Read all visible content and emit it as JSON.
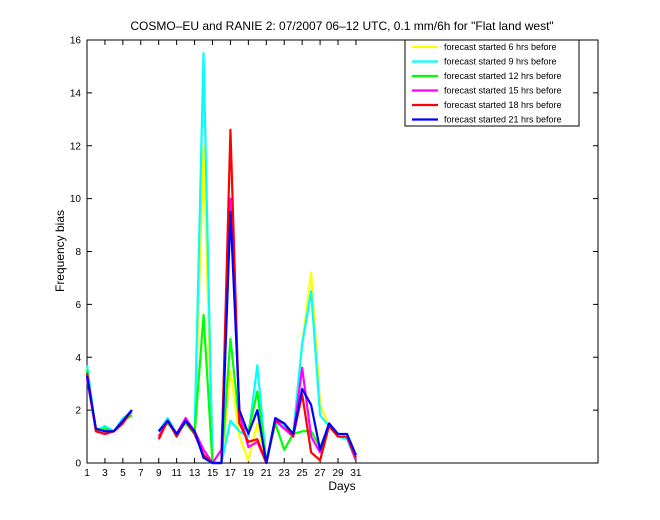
{
  "chart_data": {
    "type": "line",
    "title": "COSMO–EU and RANIE 2: 07/2007 06–12 UTC, 0.1 mm/6h for \"Flat land west\"",
    "xlabel": "Days",
    "ylabel": "Frequency bias",
    "xlim": [
      1,
      58
    ],
    "ylim": [
      0,
      16
    ],
    "xticks": [
      1,
      3,
      5,
      7,
      9,
      11,
      13,
      15,
      17,
      19,
      21,
      23,
      25,
      27,
      29,
      31
    ],
    "yticks": [
      0,
      2,
      4,
      6,
      8,
      10,
      12,
      14,
      16
    ],
    "legend_position": "top-right",
    "series": [
      {
        "name": "forecast started 6 hrs before",
        "color": "#ffff00",
        "x": [
          1,
          2,
          3,
          4,
          5,
          6,
          7,
          8,
          9,
          10,
          11,
          12,
          13,
          14,
          15,
          16,
          17,
          18,
          19,
          20,
          21,
          22,
          23,
          24,
          25,
          26,
          27,
          28,
          29,
          30,
          31
        ],
        "y": [
          3.6,
          1.3,
          1.3,
          1.2,
          1.6,
          1.9,
          null,
          null,
          1.2,
          1.6,
          1.1,
          1.6,
          1.2,
          12.0,
          0.0,
          0.0,
          3.5,
          1.0,
          0.1,
          1.5,
          0.0,
          1.6,
          1.5,
          1.1,
          4.5,
          7.2,
          2.2,
          1.4,
          1.0,
          1.0,
          0.1
        ]
      },
      {
        "name": "forecast started 9 hrs before",
        "color": "#00ffff",
        "x": [
          1,
          2,
          3,
          4,
          5,
          6,
          7,
          8,
          9,
          10,
          11,
          12,
          13,
          14,
          15,
          16,
          17,
          18,
          19,
          20,
          21,
          22,
          23,
          24,
          25,
          26,
          27,
          28,
          29,
          30,
          31
        ],
        "y": [
          3.7,
          1.2,
          1.4,
          1.2,
          1.7,
          1.9,
          null,
          null,
          1.2,
          1.7,
          1.1,
          1.6,
          1.1,
          15.5,
          0.0,
          0.0,
          1.6,
          1.2,
          1.0,
          3.7,
          0.0,
          1.5,
          1.4,
          1.1,
          4.5,
          6.5,
          1.8,
          1.4,
          1.0,
          0.9,
          0.1
        ]
      },
      {
        "name": "forecast started 12 hrs before",
        "color": "#00ff00",
        "x": [
          1,
          2,
          3,
          4,
          5,
          6,
          7,
          8,
          9,
          10,
          11,
          12,
          13,
          14,
          15,
          16,
          17,
          18,
          19,
          20,
          21,
          22,
          23,
          24,
          25,
          26,
          27,
          28,
          29,
          30,
          31
        ],
        "y": [
          3.5,
          1.2,
          1.3,
          1.2,
          1.6,
          1.8,
          null,
          null,
          1.2,
          1.5,
          1.1,
          1.5,
          1.1,
          5.6,
          0.0,
          0.0,
          4.7,
          1.5,
          1.2,
          2.7,
          0.0,
          1.5,
          0.5,
          1.1,
          1.2,
          1.2,
          0.6,
          1.4,
          1.0,
          1.0,
          0.1
        ]
      },
      {
        "name": "forecast started 15 hrs before",
        "color": "#ff00ff",
        "x": [
          1,
          2,
          3,
          4,
          5,
          6,
          7,
          8,
          9,
          10,
          11,
          12,
          13,
          14,
          15,
          16,
          17,
          18,
          19,
          20,
          21,
          22,
          23,
          24,
          25,
          26,
          27,
          28,
          29,
          30,
          31
        ],
        "y": [
          3.2,
          1.2,
          1.1,
          1.2,
          1.5,
          2.0,
          null,
          null,
          1.0,
          1.6,
          1.1,
          1.7,
          1.2,
          0.5,
          0.0,
          0.5,
          10.0,
          1.9,
          0.6,
          0.8,
          0.0,
          1.6,
          1.3,
          1.0,
          3.6,
          1.0,
          0.4,
          1.4,
          1.0,
          1.0,
          0.1
        ]
      },
      {
        "name": "forecast started 18 hrs before",
        "color": "#ff0000",
        "x": [
          1,
          2,
          3,
          4,
          5,
          6,
          7,
          8,
          9,
          10,
          11,
          12,
          13,
          14,
          15,
          16,
          17,
          18,
          19,
          20,
          21,
          22,
          23,
          24,
          25,
          26,
          27,
          28,
          29,
          30,
          31
        ],
        "y": [
          3.4,
          1.2,
          1.1,
          1.2,
          1.5,
          2.0,
          null,
          null,
          0.9,
          1.6,
          1.0,
          1.6,
          1.1,
          0.3,
          0.0,
          0.0,
          12.6,
          1.5,
          0.8,
          0.9,
          0.0,
          1.6,
          1.5,
          1.0,
          2.6,
          0.4,
          0.1,
          1.4,
          1.0,
          1.0,
          0.2
        ]
      },
      {
        "name": "forecast started 21 hrs before",
        "color": "#0000ff",
        "x": [
          1,
          2,
          3,
          4,
          5,
          6,
          7,
          8,
          9,
          10,
          11,
          12,
          13,
          14,
          15,
          16,
          17,
          18,
          19,
          20,
          21,
          22,
          23,
          24,
          25,
          26,
          27,
          28,
          29,
          30,
          31
        ],
        "y": [
          3.3,
          1.3,
          1.2,
          1.2,
          1.6,
          2.0,
          null,
          null,
          1.2,
          1.6,
          1.1,
          1.6,
          1.2,
          0.2,
          0.0,
          0.0,
          9.5,
          2.0,
          1.1,
          2.0,
          0.0,
          1.7,
          1.5,
          1.1,
          2.8,
          2.2,
          0.5,
          1.5,
          1.1,
          1.1,
          0.3
        ]
      }
    ]
  }
}
